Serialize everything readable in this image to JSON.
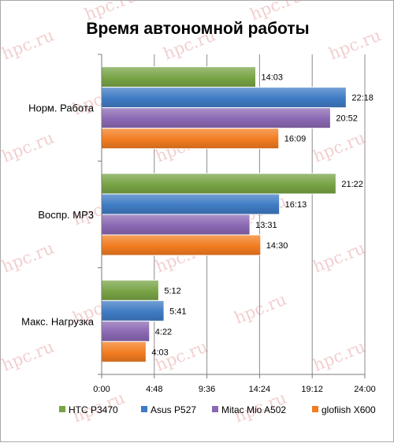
{
  "chart_data": {
    "type": "bar",
    "orientation": "horizontal",
    "title": "Время автономной работы",
    "categories": [
      "Норм. Работа",
      "Воспр. MP3",
      "Макс. Нагрузка"
    ],
    "series": [
      {
        "name": "HTC P3470",
        "color": "#78a445",
        "values": [
          "14:03",
          "21:22",
          "5:12"
        ]
      },
      {
        "name": "Asus P527",
        "color": "#3f7bc4",
        "values": [
          "22:18",
          "16:13",
          "5:41"
        ]
      },
      {
        "name": "Mitac Mio A502",
        "color": "#8b68b3",
        "values": [
          "20:52",
          "13:31",
          "4:22"
        ]
      },
      {
        "name": "glofiish X600",
        "color": "#f27c20",
        "values": [
          "16:09",
          "14:30",
          "4:03"
        ]
      }
    ],
    "xticks": [
      "0:00",
      "4:48",
      "9:36",
      "14:24",
      "19:12",
      "24:00"
    ],
    "xlim": [
      "0:00",
      "24:00"
    ],
    "grid": true,
    "legend_position": "bottom"
  },
  "watermark": "hpc.ru"
}
